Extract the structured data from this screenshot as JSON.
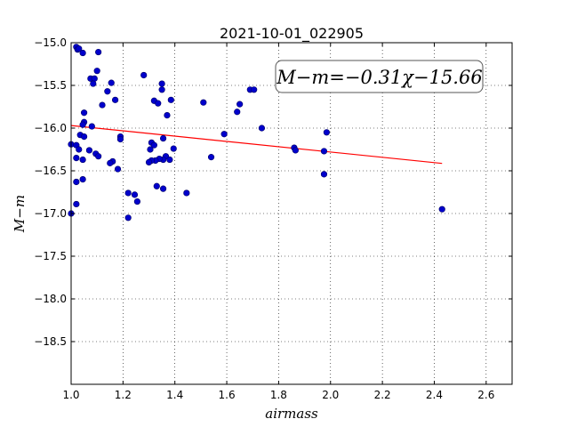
{
  "chart_data": {
    "type": "scatter",
    "title": "2021-10-01_022905",
    "xlabel": "airmass",
    "ylabel": "M−m",
    "xlim": [
      1.0,
      2.7
    ],
    "ylim": [
      -15.0,
      -19.0
    ],
    "y_inverted": true,
    "grid": true,
    "x_ticks": [
      "1.0",
      "1.2",
      "1.4",
      "1.6",
      "1.8",
      "2.0",
      "2.2",
      "2.4",
      "2.6"
    ],
    "y_ticks": [
      "−15.0",
      "−15.5",
      "−16.0",
      "−16.5",
      "−17.0",
      "−17.5",
      "−18.0",
      "−18.5"
    ],
    "annotation": "M−m=−0.31χ−15.66",
    "fit_line": {
      "slope": -0.31,
      "intercept": -15.66,
      "x_range": [
        1.0,
        2.43
      ],
      "color": "#ff0000"
    },
    "point_color": "#0000cc",
    "points": [
      [
        1.02,
        -15.05
      ],
      [
        1.025,
        -15.08
      ],
      [
        1.03,
        -15.07
      ],
      [
        1.045,
        -15.12
      ],
      [
        1.105,
        -15.11
      ],
      [
        1.1,
        -15.33
      ],
      [
        1.075,
        -15.42
      ],
      [
        1.09,
        -15.42
      ],
      [
        1.085,
        -15.48
      ],
      [
        1.155,
        -15.47
      ],
      [
        1.14,
        -15.57
      ],
      [
        1.28,
        -15.38
      ],
      [
        1.35,
        -15.48
      ],
      [
        1.35,
        -15.55
      ],
      [
        1.17,
        -15.67
      ],
      [
        1.12,
        -15.73
      ],
      [
        1.32,
        -15.68
      ],
      [
        1.335,
        -15.71
      ],
      [
        1.385,
        -15.67
      ],
      [
        1.37,
        -15.85
      ],
      [
        1.05,
        -15.82
      ],
      [
        1.05,
        -15.93
      ],
      [
        1.045,
        -15.96
      ],
      [
        1.08,
        -15.98
      ],
      [
        1.51,
        -15.7
      ],
      [
        1.65,
        -15.72
      ],
      [
        1.69,
        -15.55
      ],
      [
        1.705,
        -15.55
      ],
      [
        1.64,
        -15.81
      ],
      [
        1.735,
        -16.0
      ],
      [
        1.59,
        -16.07
      ],
      [
        1.985,
        -16.05
      ],
      [
        1.035,
        -16.08
      ],
      [
        1.05,
        -16.1
      ],
      [
        1.19,
        -16.1
      ],
      [
        1.19,
        -16.13
      ],
      [
        1.355,
        -16.12
      ],
      [
        1.31,
        -16.17
      ],
      [
        1.32,
        -16.2
      ],
      [
        1.0,
        -16.19
      ],
      [
        1.02,
        -16.2
      ],
      [
        1.03,
        -16.25
      ],
      [
        1.07,
        -16.26
      ],
      [
        1.095,
        -16.3
      ],
      [
        1.105,
        -16.33
      ],
      [
        1.305,
        -16.25
      ],
      [
        1.395,
        -16.24
      ],
      [
        1.365,
        -16.33
      ],
      [
        1.355,
        -16.37
      ],
      [
        1.34,
        -16.36
      ],
      [
        1.325,
        -16.38
      ],
      [
        1.31,
        -16.38
      ],
      [
        1.3,
        -16.4
      ],
      [
        1.38,
        -16.37
      ],
      [
        1.02,
        -16.35
      ],
      [
        1.045,
        -16.37
      ],
      [
        1.16,
        -16.39
      ],
      [
        1.15,
        -16.41
      ],
      [
        1.18,
        -16.48
      ],
      [
        1.54,
        -16.34
      ],
      [
        1.86,
        -16.23
      ],
      [
        1.865,
        -16.26
      ],
      [
        1.975,
        -16.27
      ],
      [
        1.975,
        -16.54
      ],
      [
        1.045,
        -16.6
      ],
      [
        1.02,
        -16.63
      ],
      [
        1.33,
        -16.68
      ],
      [
        1.355,
        -16.71
      ],
      [
        1.22,
        -16.76
      ],
      [
        1.245,
        -16.78
      ],
      [
        1.445,
        -16.76
      ],
      [
        1.255,
        -16.86
      ],
      [
        1.02,
        -16.89
      ],
      [
        1.0,
        -17.0
      ],
      [
        1.22,
        -17.05
      ],
      [
        2.43,
        -16.95
      ]
    ]
  }
}
